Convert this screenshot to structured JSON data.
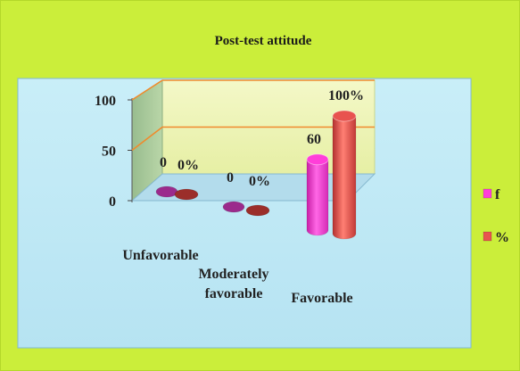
{
  "chart_data": {
    "type": "bar",
    "title": "Post-test attitude",
    "categories": [
      "Unfavorable",
      "Moderately favorable",
      "Favorable"
    ],
    "category_lines": [
      [
        "Unfavorable"
      ],
      [
        "Moderately",
        "favorable"
      ],
      [
        "Favorable"
      ]
    ],
    "series": [
      {
        "name": "f",
        "values": [
          0,
          0,
          60
        ],
        "labels": [
          "0",
          "0",
          "60"
        ],
        "color": "#ff3ed9"
      },
      {
        "name": "%",
        "values": [
          0,
          0,
          100
        ],
        "labels": [
          "0%",
          "0%",
          "100%"
        ],
        "color": "#e8534f"
      }
    ],
    "yticks": [
      "0",
      "50",
      "100"
    ],
    "ylim": [
      0,
      100
    ],
    "grid": true,
    "legend_position": "right",
    "colors": {
      "outer_bg": "#cbee3a",
      "plot_bg": "#c4ecf6",
      "back_wall": "#eef5b8",
      "side_wall": "#a7c89b",
      "grid_line": "#f08a2c",
      "plot_border": "#7fb8d6"
    }
  }
}
